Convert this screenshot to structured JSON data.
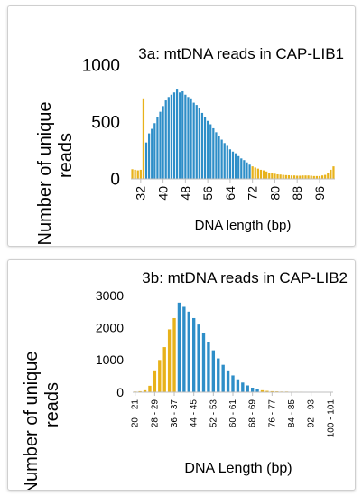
{
  "colors": {
    "blue": "#2E8EC8",
    "gold": "#E8B21A",
    "axis": "#bfbfbf"
  },
  "chart_data": [
    {
      "type": "bar",
      "title": "3a: mtDNA reads in CAP-LIB1",
      "xlabel": "DNA length (bp)",
      "ylabel": "Number of unique reads",
      "ylabel_lines": [
        "Number of unique",
        "reads"
      ],
      "ylim": [
        0,
        1000
      ],
      "yticks": [
        "0",
        "500",
        "1000"
      ],
      "x_tick_labels": [
        "32",
        "40",
        "48",
        "56",
        "64",
        "72",
        "80",
        "88",
        "96"
      ],
      "x_tick_values": [
        32,
        40,
        48,
        56,
        64,
        72,
        80,
        88,
        96
      ],
      "x": [
        29,
        30,
        31,
        32,
        33,
        34,
        35,
        36,
        37,
        38,
        39,
        40,
        41,
        42,
        43,
        44,
        45,
        46,
        47,
        48,
        49,
        50,
        51,
        52,
        53,
        54,
        55,
        56,
        57,
        58,
        59,
        60,
        61,
        62,
        63,
        64,
        65,
        66,
        67,
        68,
        69,
        70,
        71,
        72,
        73,
        74,
        75,
        76,
        77,
        78,
        79,
        80,
        81,
        82,
        83,
        84,
        85,
        86,
        87,
        88,
        89,
        90,
        91,
        92,
        93,
        94,
        95,
        96,
        97,
        98,
        99,
        100,
        101
      ],
      "values": [
        85,
        80,
        75,
        80,
        700,
        320,
        400,
        440,
        490,
        540,
        590,
        640,
        690,
        720,
        740,
        760,
        785,
        760,
        770,
        740,
        720,
        700,
        670,
        650,
        620,
        580,
        545,
        510,
        480,
        445,
        410,
        380,
        345,
        315,
        290,
        260,
        240,
        225,
        200,
        180,
        165,
        145,
        125,
        110,
        100,
        90,
        80,
        75,
        65,
        55,
        50,
        45,
        40,
        38,
        35,
        33,
        32,
        30,
        30,
        28,
        28,
        30,
        30,
        30,
        28,
        25,
        25,
        25,
        30,
        35,
        55,
        80,
        110
      ],
      "colors": [
        "gold",
        "gold",
        "gold",
        "gold",
        "gold",
        "blue",
        "blue",
        "blue",
        "blue",
        "blue",
        "blue",
        "blue",
        "blue",
        "blue",
        "blue",
        "blue",
        "blue",
        "blue",
        "blue",
        "blue",
        "blue",
        "blue",
        "blue",
        "blue",
        "blue",
        "blue",
        "blue",
        "blue",
        "blue",
        "blue",
        "blue",
        "blue",
        "blue",
        "blue",
        "blue",
        "blue",
        "blue",
        "blue",
        "blue",
        "blue",
        "blue",
        "blue",
        "blue",
        "gold",
        "gold",
        "gold",
        "gold",
        "gold",
        "gold",
        "gold",
        "gold",
        "gold",
        "gold",
        "gold",
        "gold",
        "gold",
        "gold",
        "gold",
        "gold",
        "gold",
        "gold",
        "gold",
        "gold",
        "gold",
        "gold",
        "gold",
        "gold",
        "gold",
        "gold",
        "gold",
        "gold",
        "gold",
        "gold"
      ],
      "grid": false,
      "legend": "none"
    },
    {
      "type": "bar",
      "title": "3b: mtDNA reads in CAP-LIB2",
      "xlabel": "DNA Length (bp)",
      "ylabel": "Number of unique reads",
      "ylabel_lines": [
        "Number of unique",
        "reads"
      ],
      "ylim": [
        0,
        3000
      ],
      "yticks": [
        "0",
        "1000",
        "2000",
        "3000"
      ],
      "x_tick_labels": [
        "20 - 21",
        "28 - 29",
        "36 - 37",
        "44 - 45",
        "52 - 53",
        "60 - 61",
        "68 - 69",
        "76 - 77",
        "84 - 85",
        "92 - 93",
        "100 - 101"
      ],
      "x_tick_values": [
        20,
        28,
        36,
        44,
        52,
        60,
        68,
        76,
        84,
        92,
        100
      ],
      "x": [
        20,
        22,
        24,
        26,
        28,
        30,
        32,
        34,
        36,
        38,
        40,
        42,
        44,
        46,
        48,
        50,
        52,
        54,
        56,
        58,
        60,
        62,
        64,
        66,
        68,
        70,
        72,
        74,
        76,
        78,
        80,
        82,
        84,
        86,
        88,
        90,
        92,
        94,
        96,
        98,
        100
      ],
      "values": [
        20,
        30,
        60,
        200,
        650,
        1000,
        1400,
        1950,
        2300,
        2780,
        2650,
        2500,
        2300,
        2100,
        1850,
        1550,
        1300,
        1050,
        850,
        650,
        520,
        400,
        300,
        210,
        140,
        90,
        60,
        40,
        30,
        25,
        20,
        20,
        15,
        15,
        15,
        12,
        12,
        12,
        12,
        10,
        10
      ],
      "colors": [
        "gold",
        "gold",
        "gold",
        "gold",
        "gold",
        "gold",
        "gold",
        "gold",
        "gold",
        "blue",
        "blue",
        "blue",
        "blue",
        "blue",
        "blue",
        "blue",
        "blue",
        "blue",
        "blue",
        "blue",
        "blue",
        "blue",
        "blue",
        "blue",
        "blue",
        "blue",
        "gold",
        "gold",
        "gold",
        "gold",
        "gold",
        "gold",
        "gold",
        "gold",
        "gold",
        "gold",
        "gold",
        "gold",
        "gold",
        "gold",
        "gold"
      ],
      "grid": false,
      "legend": "none"
    }
  ]
}
